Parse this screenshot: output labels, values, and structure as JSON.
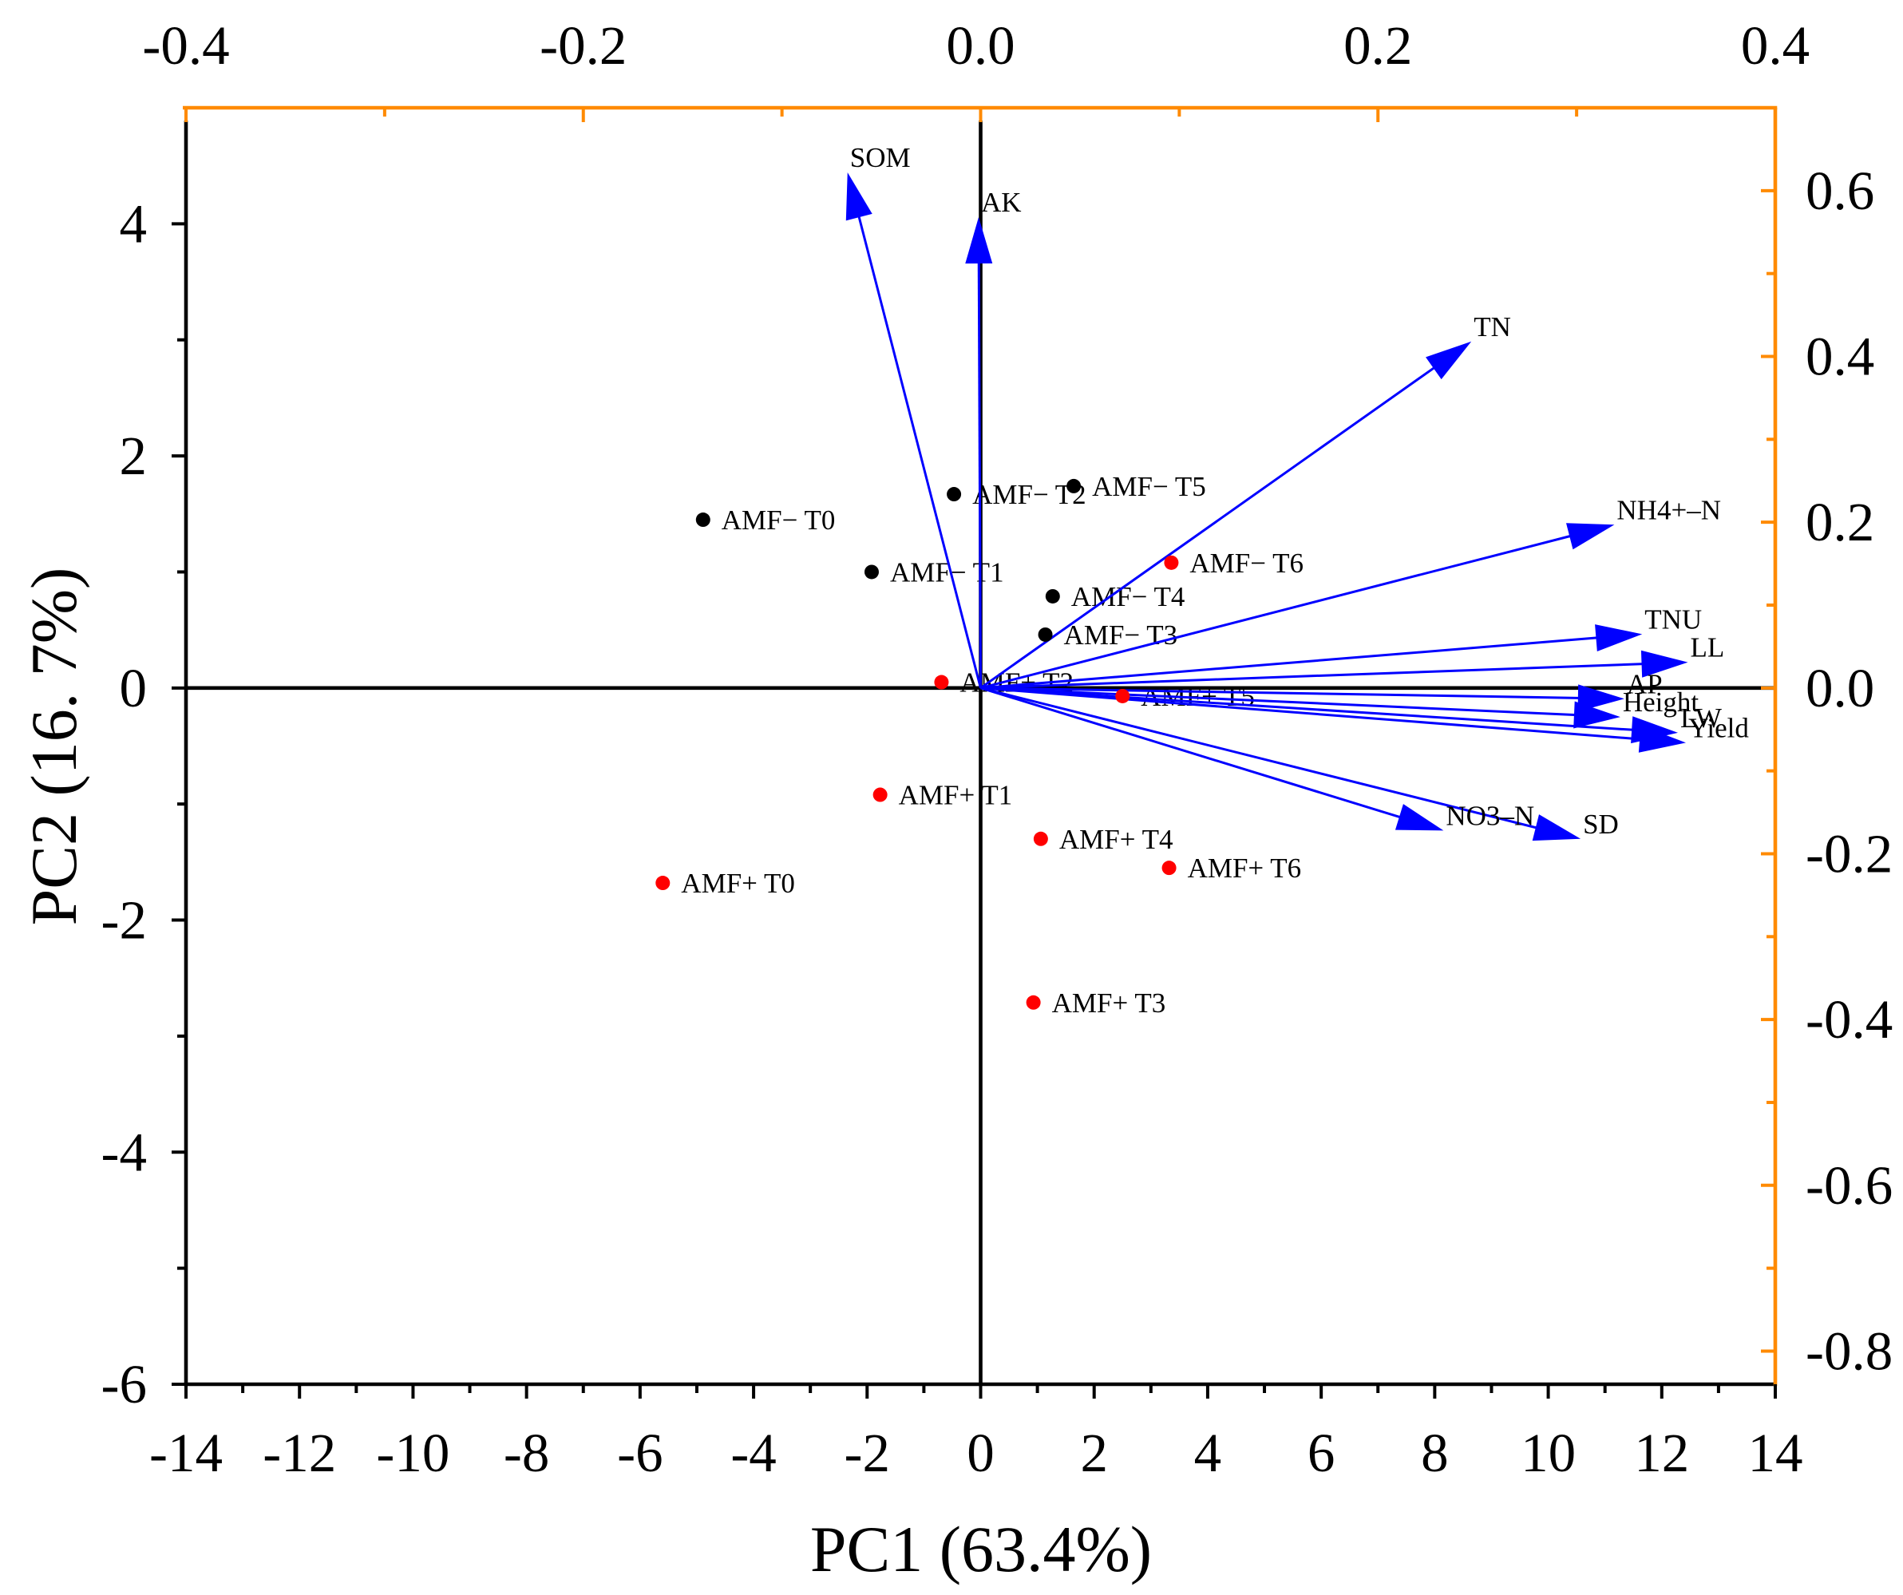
{
  "chart_data": {
    "type": "scatter",
    "xlabel": "PC1 (63.4%)",
    "ylabel": "PC2 (16. 7%)",
    "xlim": [
      -14,
      14
    ],
    "ylim": [
      -6,
      5
    ],
    "grid": false,
    "x_ticks": [
      -14,
      -12,
      -10,
      -8,
      -6,
      -4,
      -2,
      0,
      2,
      4,
      6,
      8,
      10,
      12,
      14
    ],
    "x_tick_labels": [
      "-14",
      "-12",
      "-10",
      "-8",
      "-6",
      "-4",
      "-2",
      "0",
      "2",
      "4",
      "6",
      "8",
      "10",
      "12",
      "14"
    ],
    "y_ticks": [
      -6,
      -4,
      -2,
      0,
      2,
      4
    ],
    "y_tick_labels": [
      "-6",
      "-4",
      "-2",
      "0",
      "2",
      "4"
    ],
    "top_axis": {
      "xlim": [
        -0.4,
        0.4
      ],
      "ticks": [
        -0.4,
        -0.2,
        0,
        0.2,
        0.4
      ],
      "tick_labels": [
        "-0.4",
        "-0.2",
        "0.0",
        "0.2",
        "0.4"
      ]
    },
    "right_axis": {
      "ylim": [
        -0.84,
        0.7
      ],
      "ticks": [
        -0.8,
        -0.6,
        -0.4,
        -0.2,
        0,
        0.2,
        0.4,
        0.6
      ],
      "tick_labels": [
        "-0.8",
        "-0.6",
        "-0.4",
        "-0.2",
        "0.0",
        "0.2",
        "0.4",
        "0.6"
      ]
    },
    "scores": [
      {
        "label": "AMF− T0",
        "x": -4.89,
        "y": 1.45,
        "color": "#000000"
      },
      {
        "label": "AMF− T1",
        "x": -1.92,
        "y": 1.0,
        "color": "#000000"
      },
      {
        "label": "AMF− T2",
        "x": -0.47,
        "y": 1.67,
        "color": "#000000"
      },
      {
        "label": "AMF− T3",
        "x": 1.14,
        "y": 0.46,
        "color": "#000000"
      },
      {
        "label": "AMF− T4",
        "x": 1.27,
        "y": 0.79,
        "color": "#000000"
      },
      {
        "label": "AMF− T5",
        "x": 1.64,
        "y": 1.74,
        "color": "#000000"
      },
      {
        "label": "AMF− T6",
        "x": 3.36,
        "y": 1.08,
        "color": "#FF0000"
      },
      {
        "label": "AMF+ T0",
        "x": -5.6,
        "y": -1.68,
        "color": "#FF0000"
      },
      {
        "label": "AMF+ T1",
        "x": -1.77,
        "y": -0.92,
        "color": "#FF0000"
      },
      {
        "label": "AMF+ T2",
        "x": -0.69,
        "y": 0.05,
        "color": "#FF0000"
      },
      {
        "label": "AMF+ T3",
        "x": 0.93,
        "y": -2.71,
        "color": "#FF0000"
      },
      {
        "label": "AMF+ T4",
        "x": 1.06,
        "y": -1.3,
        "color": "#FF0000"
      },
      {
        "label": "AMF+ T5",
        "x": 2.5,
        "y": -0.07,
        "color": "#FF0000"
      },
      {
        "label": "AMF+ T6",
        "x": 3.32,
        "y": -1.55,
        "color": "#FF0000"
      }
    ],
    "loadings": [
      {
        "label": "SOM",
        "x": -0.067,
        "y": 0.622
      },
      {
        "label": "AK",
        "x": -0.001,
        "y": 0.568
      },
      {
        "label": "TN",
        "x": 0.247,
        "y": 0.418
      },
      {
        "label": "NH4+–N",
        "x": 0.319,
        "y": 0.197
      },
      {
        "label": "TNU",
        "x": 0.333,
        "y": 0.065
      },
      {
        "label": "LL",
        "x": 0.356,
        "y": 0.031
      },
      {
        "label": "AP",
        "x": 0.324,
        "y": -0.013
      },
      {
        "label": "Height",
        "x": 0.322,
        "y": -0.035
      },
      {
        "label": "LW",
        "x": 0.351,
        "y": -0.054
      },
      {
        "label": "Yield",
        "x": 0.355,
        "y": -0.066
      },
      {
        "label": "NO3–N",
        "x": 0.233,
        "y": -0.172
      },
      {
        "label": "SD",
        "x": 0.302,
        "y": -0.182
      }
    ]
  },
  "colors": {
    "axis_primary": "#000000",
    "axis_secondary": "#FF8A00",
    "loading_arrow": "#0000FF",
    "background": "#FFFFFF"
  }
}
